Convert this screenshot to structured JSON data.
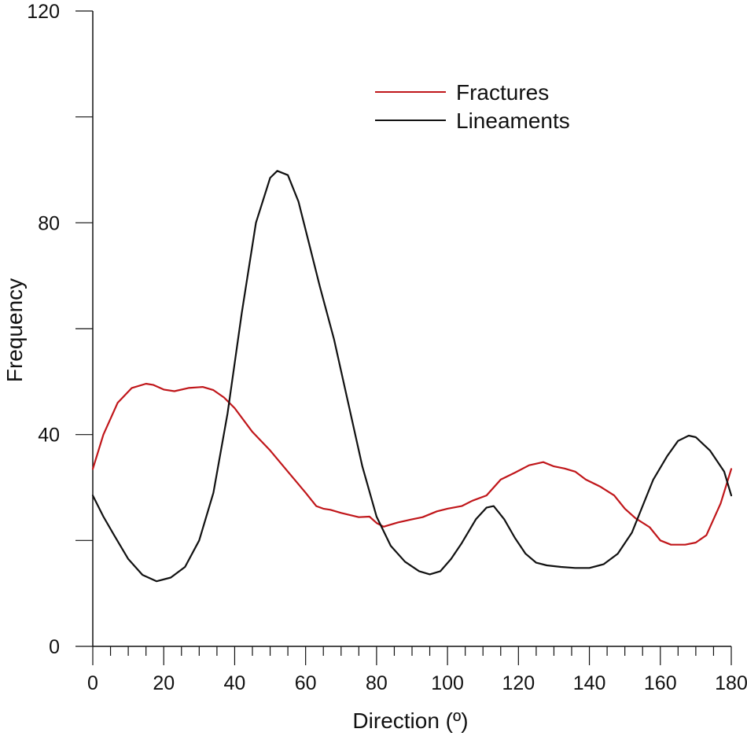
{
  "chart_data": {
    "type": "line",
    "xlabel": "Direction (º)",
    "ylabel": "Frequency",
    "xlim": [
      0,
      180
    ],
    "ylim": [
      0,
      120
    ],
    "x_ticks": [
      0,
      20,
      40,
      60,
      80,
      100,
      120,
      140,
      160,
      180
    ],
    "y_ticks_labeled": [
      0,
      40,
      80,
      120
    ],
    "y_ticks_minor": [
      20,
      60,
      100
    ],
    "grid": false,
    "legend": {
      "placement": "top-right"
    },
    "series": [
      {
        "name": "Fractures",
        "color": "#c0161a",
        "x": [
          0,
          3,
          7,
          11,
          15,
          17,
          20,
          23,
          27,
          31,
          34,
          37,
          40,
          45,
          50,
          55,
          60,
          63,
          65,
          67,
          70,
          75,
          78,
          80,
          82,
          86,
          90,
          93,
          97,
          100,
          104,
          107,
          111,
          115,
          119,
          123,
          127,
          130,
          133,
          136,
          139,
          143,
          147,
          150,
          153,
          157,
          160,
          163,
          167,
          170,
          173,
          177,
          180
        ],
        "y": [
          33.5,
          40,
          46,
          48.8,
          49.6,
          49.4,
          48.5,
          48.2,
          48.8,
          49,
          48.4,
          47,
          45,
          40.5,
          37,
          33,
          29,
          26.5,
          26,
          25.8,
          25.2,
          24.4,
          24.5,
          23.3,
          22.6,
          23.4,
          24,
          24.4,
          25.5,
          26,
          26.5,
          27.5,
          28.5,
          31.5,
          32.8,
          34.2,
          34.8,
          34,
          33.6,
          33,
          31.5,
          30.2,
          28.5,
          26,
          24.2,
          22.5,
          20,
          19.2,
          19.2,
          19.6,
          21,
          27,
          33.5
        ]
      },
      {
        "name": "Lineaments",
        "color": "#111111",
        "x": [
          0,
          3,
          6,
          10,
          14,
          18,
          22,
          26,
          30,
          34,
          38,
          42,
          46,
          50,
          52,
          55,
          58,
          61,
          64,
          68,
          72,
          76,
          80,
          84,
          88,
          92,
          95,
          98,
          101,
          104,
          108,
          111,
          113,
          116,
          119,
          122,
          125,
          128,
          132,
          136,
          140,
          144,
          148,
          152,
          155,
          158,
          162,
          165,
          168,
          170,
          174,
          178,
          180
        ],
        "y": [
          28.5,
          24.5,
          21,
          16.5,
          13.5,
          12.3,
          13,
          15,
          20,
          29,
          44,
          63,
          80,
          88.5,
          89.8,
          89,
          84,
          76,
          68,
          58,
          46,
          34,
          24.5,
          19,
          16,
          14.2,
          13.6,
          14.2,
          16.5,
          19.5,
          24,
          26.2,
          26.5,
          24,
          20.5,
          17.5,
          15.8,
          15.3,
          15,
          14.8,
          14.8,
          15.5,
          17.5,
          21.5,
          26.5,
          31.5,
          36,
          38.8,
          39.8,
          39.5,
          37,
          33,
          28.5
        ]
      }
    ]
  }
}
